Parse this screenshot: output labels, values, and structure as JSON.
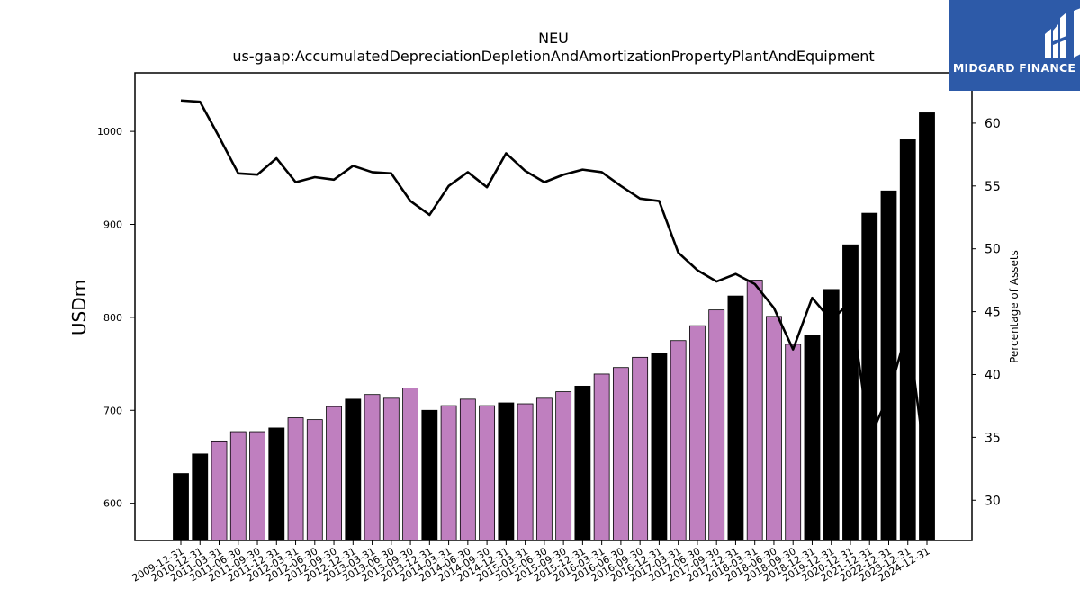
{
  "chart_data": {
    "type": "bar",
    "title": "NEU",
    "subtitle": "us-gaap:AccumulatedDepreciationDepletionAndAmortizationPropertyPlantAndEquipment",
    "ylabel": "USDm",
    "y2label": "Percentage of Assets",
    "ylim": [
      560,
      1063
    ],
    "y2lim": [
      26.8,
      64
    ],
    "yticks": [
      600,
      700,
      800,
      900,
      1000
    ],
    "y2ticks": [
      30,
      35,
      40,
      45,
      50,
      55,
      60
    ],
    "grid": false,
    "categories": [
      "2009-12-31",
      "2010-12-31",
      "2011-03-31",
      "2011-06-30",
      "2011-09-30",
      "2011-12-31",
      "2012-03-31",
      "2012-06-30",
      "2012-09-30",
      "2012-12-31",
      "2013-03-31",
      "2013-06-30",
      "2013-09-30",
      "2013-12-31",
      "2014-03-31",
      "2014-06-30",
      "2014-09-30",
      "2014-12-31",
      "2015-03-31",
      "2015-06-30",
      "2015-09-30",
      "2015-12-31",
      "2016-03-31",
      "2016-06-30",
      "2016-09-30",
      "2016-12-31",
      "2017-03-31",
      "2017-06-30",
      "2017-09-30",
      "2017-12-31",
      "2018-03-31",
      "2018-06-30",
      "2018-09-30",
      "2018-12-31",
      "2019-12-31",
      "2020-12-31",
      "2021-12-31",
      "2022-12-31",
      "2023-12-31",
      "2024-12-31"
    ],
    "series": [
      {
        "type": "bar",
        "values": [
          632,
          653,
          667,
          677,
          677,
          681,
          692,
          690,
          704,
          712,
          717,
          713,
          724,
          700,
          705,
          712,
          705,
          708,
          707,
          713,
          720,
          726,
          739,
          746,
          757,
          761,
          775,
          791,
          808,
          823,
          840,
          801,
          771,
          781,
          830,
          878,
          912,
          936,
          991,
          1020
        ]
      },
      {
        "type": "line",
        "axis": "right",
        "values": [
          61.8,
          61.7,
          58.9,
          56.0,
          55.9,
          57.2,
          55.3,
          55.7,
          55.5,
          56.6,
          56.1,
          56.0,
          53.8,
          52.7,
          55.0,
          56.1,
          54.9,
          57.6,
          56.2,
          55.3,
          55.9,
          56.3,
          56.1,
          55.0,
          54.0,
          53.8,
          49.7,
          48.3,
          47.4,
          48.0,
          47.2,
          45.3,
          42.0,
          46.1,
          44.3,
          45.8,
          34.9,
          38.4,
          43.7,
          32.0
        ]
      }
    ],
    "bar_colors": {
      "quarter": "#bf7fbf",
      "annual": "#000000"
    },
    "line_color": "#000000"
  },
  "logo": {
    "text": "MIDGARD FINANCE",
    "bg_color": "#2d5aa8",
    "icon": "midgard-logo-icon"
  }
}
